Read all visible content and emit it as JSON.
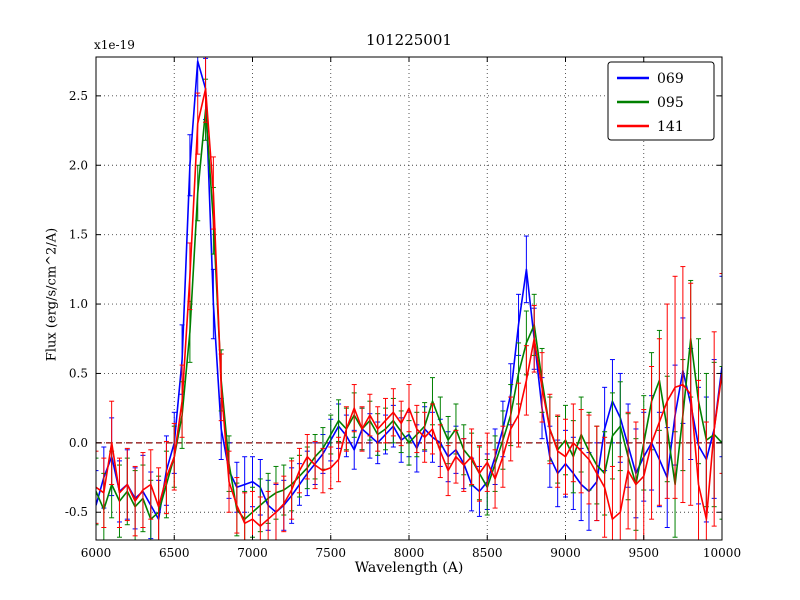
{
  "figure": {
    "title": "101225001",
    "offset_text": "x1e-19",
    "xlabel": "Wavelength (A)",
    "ylabel": "Flux (erg/s/cm^2/A)"
  },
  "chart_data": {
    "type": "line",
    "title": "101225001",
    "offset_text": "x1e-19",
    "xlabel": "Wavelength (A)",
    "ylabel": "Flux (erg/s/cm^2/A)",
    "xlim": [
      6000,
      10000
    ],
    "ylim": [
      -0.7,
      2.78
    ],
    "xticks": [
      6000,
      6500,
      7000,
      7500,
      8000,
      8500,
      9000,
      9500,
      10000
    ],
    "yticks": [
      -0.5,
      0.0,
      0.5,
      1.0,
      1.5,
      2.0,
      2.5
    ],
    "grid": true,
    "grid_style": "dotted",
    "legend_position": "upper right",
    "zero_line": {
      "y": 0,
      "color": "#8b0000",
      "style": "dashed"
    },
    "x": [
      6000,
      6050,
      6100,
      6150,
      6200,
      6250,
      6300,
      6350,
      6400,
      6450,
      6500,
      6550,
      6600,
      6650,
      6700,
      6750,
      6800,
      6850,
      6900,
      6950,
      7000,
      7050,
      7100,
      7150,
      7200,
      7250,
      7300,
      7350,
      7400,
      7450,
      7500,
      7550,
      7600,
      7650,
      7700,
      7750,
      7800,
      7850,
      7900,
      7950,
      8000,
      8050,
      8100,
      8150,
      8200,
      8250,
      8300,
      8350,
      8400,
      8450,
      8500,
      8550,
      8600,
      8650,
      8700,
      8750,
      8800,
      8850,
      8900,
      8950,
      9000,
      9050,
      9100,
      9150,
      9200,
      9250,
      9300,
      9350,
      9400,
      9450,
      9500,
      9550,
      9600,
      9650,
      9700,
      9750,
      9800,
      9850,
      9900,
      9950,
      10000
    ],
    "series": [
      {
        "name": "069",
        "color": "#0000ff",
        "values": [
          -0.45,
          -0.25,
          -0.1,
          -0.35,
          -0.3,
          -0.4,
          -0.35,
          -0.45,
          -0.55,
          -0.2,
          0.0,
          0.6,
          2.0,
          2.75,
          2.55,
          1.0,
          0.1,
          -0.2,
          -0.32,
          -0.3,
          -0.28,
          -0.32,
          -0.45,
          -0.5,
          -0.45,
          -0.38,
          -0.3,
          -0.22,
          -0.15,
          -0.08,
          0.02,
          0.12,
          0.05,
          -0.05,
          0.1,
          0.05,
          0.0,
          0.06,
          0.12,
          0.02,
          0.06,
          -0.04,
          0.1,
          0.04,
          0.0,
          -0.1,
          -0.05,
          -0.15,
          -0.3,
          -0.35,
          -0.28,
          -0.1,
          0.1,
          0.35,
          0.85,
          1.25,
          0.75,
          0.25,
          -0.1,
          -0.22,
          -0.15,
          -0.22,
          -0.3,
          -0.35,
          -0.28,
          0.1,
          0.3,
          0.18,
          -0.02,
          -0.22,
          -0.1,
          0.0,
          -0.12,
          -0.25,
          0.2,
          0.52,
          0.28,
          -0.02,
          -0.12,
          0.1,
          0.55
        ],
        "errors": [
          0.25,
          0.22,
          0.28,
          0.22,
          0.25,
          0.22,
          0.26,
          0.24,
          0.28,
          0.25,
          0.22,
          0.25,
          0.22,
          0.25,
          0.22,
          0.25,
          0.22,
          0.2,
          0.18,
          0.2,
          0.18,
          0.2,
          0.18,
          0.2,
          0.18,
          0.2,
          0.15,
          0.16,
          0.15,
          0.14,
          0.15,
          0.16,
          0.15,
          0.14,
          0.15,
          0.16,
          0.15,
          0.14,
          0.15,
          0.16,
          0.16,
          0.17,
          0.16,
          0.18,
          0.17,
          0.18,
          0.17,
          0.18,
          0.19,
          0.18,
          0.2,
          0.2,
          0.2,
          0.22,
          0.22,
          0.24,
          0.22,
          0.22,
          0.22,
          0.24,
          0.24,
          0.26,
          0.26,
          0.28,
          0.28,
          0.3,
          0.3,
          0.32,
          0.3,
          0.32,
          0.32,
          0.34,
          0.34,
          0.36,
          0.36,
          0.38,
          0.4,
          0.42,
          0.45,
          0.5,
          0.65
        ]
      },
      {
        "name": "095",
        "color": "#008000",
        "values": [
          -0.35,
          -0.48,
          -0.3,
          -0.42,
          -0.35,
          -0.46,
          -0.4,
          -0.55,
          -0.5,
          -0.3,
          -0.1,
          0.2,
          0.8,
          1.8,
          2.4,
          1.6,
          0.45,
          -0.15,
          -0.48,
          -0.55,
          -0.5,
          -0.45,
          -0.4,
          -0.36,
          -0.34,
          -0.3,
          -0.24,
          -0.18,
          -0.1,
          -0.04,
          0.06,
          0.16,
          0.1,
          0.2,
          0.1,
          0.16,
          0.06,
          0.1,
          0.16,
          0.08,
          0.0,
          0.06,
          0.12,
          0.3,
          0.15,
          0.02,
          0.1,
          -0.05,
          -0.12,
          -0.22,
          -0.32,
          -0.15,
          0.02,
          0.2,
          0.5,
          0.72,
          0.85,
          0.45,
          0.1,
          -0.05,
          0.02,
          -0.1,
          0.06,
          -0.06,
          -0.16,
          -0.22,
          0.05,
          0.12,
          -0.1,
          -0.3,
          0.0,
          0.3,
          0.45,
          0.1,
          -0.3,
          0.2,
          0.75,
          0.3,
          0.02,
          0.06,
          0.0
        ],
        "errors": [
          0.24,
          0.26,
          0.24,
          0.26,
          0.24,
          0.26,
          0.24,
          0.28,
          0.26,
          0.24,
          0.22,
          0.24,
          0.22,
          0.2,
          0.22,
          0.24,
          0.22,
          0.2,
          0.19,
          0.2,
          0.18,
          0.19,
          0.18,
          0.19,
          0.18,
          0.19,
          0.15,
          0.15,
          0.16,
          0.15,
          0.14,
          0.15,
          0.15,
          0.16,
          0.15,
          0.14,
          0.15,
          0.15,
          0.16,
          0.15,
          0.16,
          0.16,
          0.17,
          0.17,
          0.18,
          0.17,
          0.18,
          0.18,
          0.19,
          0.19,
          0.2,
          0.2,
          0.21,
          0.22,
          0.22,
          0.23,
          0.22,
          0.23,
          0.23,
          0.24,
          0.25,
          0.26,
          0.27,
          0.28,
          0.28,
          0.3,
          0.31,
          0.32,
          0.31,
          0.33,
          0.34,
          0.35,
          0.36,
          0.38,
          0.38,
          0.4,
          0.42,
          0.45,
          0.48,
          0.52,
          0.55
        ]
      },
      {
        "name": "141",
        "color": "#ff0000",
        "values": [
          -0.32,
          -0.36,
          0.0,
          -0.36,
          -0.3,
          -0.42,
          -0.34,
          -0.3,
          -0.46,
          -0.25,
          -0.1,
          0.3,
          1.2,
          2.3,
          2.55,
          1.8,
          0.4,
          -0.28,
          -0.45,
          -0.58,
          -0.55,
          -0.6,
          -0.55,
          -0.5,
          -0.44,
          -0.34,
          -0.2,
          -0.1,
          -0.16,
          -0.2,
          -0.18,
          -0.12,
          0.1,
          0.25,
          0.1,
          0.2,
          0.1,
          0.16,
          0.22,
          0.14,
          0.25,
          0.1,
          0.04,
          0.1,
          -0.06,
          -0.2,
          -0.1,
          -0.16,
          -0.1,
          -0.22,
          -0.14,
          -0.26,
          -0.1,
          0.1,
          0.2,
          0.45,
          0.75,
          0.4,
          0.1,
          -0.06,
          -0.1,
          0.0,
          -0.06,
          -0.12,
          -0.22,
          -0.32,
          -0.55,
          -0.5,
          -0.2,
          -0.3,
          -0.24,
          0.0,
          0.15,
          0.3,
          0.4,
          0.42,
          0.35,
          -0.3,
          -0.55,
          0.1,
          0.5
        ],
        "errors": [
          0.26,
          0.25,
          0.3,
          0.25,
          0.26,
          0.25,
          0.27,
          0.25,
          0.28,
          0.26,
          0.24,
          0.26,
          0.24,
          0.22,
          0.24,
          0.26,
          0.24,
          0.22,
          0.2,
          0.22,
          0.2,
          0.21,
          0.2,
          0.21,
          0.2,
          0.21,
          0.16,
          0.16,
          0.17,
          0.16,
          0.15,
          0.16,
          0.16,
          0.17,
          0.16,
          0.15,
          0.16,
          0.16,
          0.17,
          0.16,
          0.17,
          0.17,
          0.18,
          0.18,
          0.19,
          0.18,
          0.19,
          0.19,
          0.2,
          0.2,
          0.21,
          0.21,
          0.22,
          0.23,
          0.23,
          0.25,
          0.24,
          0.25,
          0.25,
          0.26,
          0.27,
          0.28,
          0.3,
          0.32,
          0.34,
          0.36,
          0.38,
          0.4,
          0.42,
          0.45,
          0.48,
          0.55,
          0.6,
          0.7,
          0.8,
          0.85,
          0.8,
          0.75,
          0.7,
          0.7,
          0.72
        ]
      }
    ]
  }
}
